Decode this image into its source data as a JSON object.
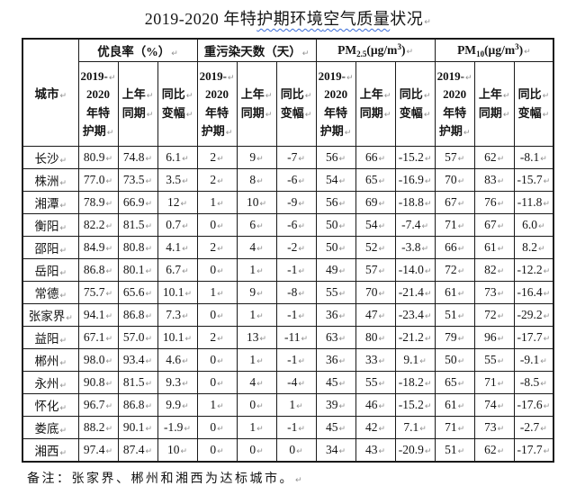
{
  "page": {
    "title_parts": {
      "p1": "2019-2020 年特",
      "p2": "护期环境",
      "p3": "空气质量",
      "p4": "状况"
    },
    "mark": "↵",
    "footnote": "备注：张家界、郴州和湘西为达标城市。"
  },
  "colors": {
    "border": "#1a1a1a",
    "text": "#141414",
    "paragraph_mark": "#8f8f8f",
    "spellcheck_squiggle": "#3a6cd8"
  },
  "table": {
    "city_header": "城市",
    "groups": [
      {
        "label": "优良率（%）"
      },
      {
        "label": "重污染天数（天）"
      },
      {
        "base": "PM",
        "sub": "2.5",
        "unit_pre": "(µg/m",
        "sup": "3",
        "unit_post": ")"
      },
      {
        "base": "PM",
        "sub": "10",
        "unit_pre": "(µg/m",
        "sup": "3",
        "unit_post": ")"
      }
    ],
    "sub_columns": [
      {
        "lines": [
          {
            "t": "2019-",
            "m": true
          },
          {
            "t": "2020",
            "m": false
          },
          {
            "t": "年特",
            "m": false
          },
          {
            "t": "护期",
            "m": true
          }
        ]
      },
      {
        "lines": [
          {
            "t": "上年",
            "m": true
          },
          {
            "t": "同期",
            "m": true
          }
        ]
      },
      {
        "lines": [
          {
            "t": "同比",
            "m": true
          },
          {
            "t": "变幅",
            "m": true
          }
        ]
      }
    ],
    "rows": [
      {
        "city": "长沙",
        "values": [
          "80.9",
          "74.8",
          "6.1",
          "2",
          "9",
          "-7",
          "56",
          "66",
          "-15.2",
          "57",
          "62",
          "-8.1"
        ]
      },
      {
        "city": "株洲",
        "values": [
          "77.0",
          "73.5",
          "3.5",
          "2",
          "8",
          "-6",
          "54",
          "65",
          "-16.9",
          "70",
          "83",
          "-15.7"
        ]
      },
      {
        "city": "湘潭",
        "values": [
          "78.9",
          "66.9",
          "12",
          "1",
          "10",
          "-9",
          "56",
          "69",
          "-18.8",
          "67",
          "76",
          "-11.8"
        ]
      },
      {
        "city": "衡阳",
        "values": [
          "82.2",
          "81.5",
          "0.7",
          "0",
          "6",
          "-6",
          "50",
          "54",
          "-7.4",
          "71",
          "67",
          "6.0"
        ]
      },
      {
        "city": "邵阳",
        "values": [
          "84.9",
          "80.8",
          "4.1",
          "2",
          "4",
          "-2",
          "50",
          "52",
          "-3.8",
          "66",
          "61",
          "8.2"
        ]
      },
      {
        "city": "岳阳",
        "values": [
          "86.8",
          "80.1",
          "6.7",
          "0",
          "1",
          "-1",
          "49",
          "57",
          "-14.0",
          "72",
          "82",
          "-12.2"
        ]
      },
      {
        "city": "常德",
        "values": [
          "75.7",
          "65.6",
          "10.1",
          "1",
          "9",
          "-8",
          "55",
          "70",
          "-21.4",
          "61",
          "73",
          "-16.4"
        ]
      },
      {
        "city": "张家界",
        "values": [
          "94.1",
          "86.8",
          "7.3",
          "0",
          "1",
          "-1",
          "36",
          "47",
          "-23.4",
          "51",
          "72",
          "-29.2"
        ]
      },
      {
        "city": "益阳",
        "values": [
          "67.1",
          "57.0",
          "10.1",
          "2",
          "13",
          "-11",
          "63",
          "80",
          "-21.2",
          "79",
          "96",
          "-17.7"
        ]
      },
      {
        "city": "郴州",
        "values": [
          "98.0",
          "93.4",
          "4.6",
          "0",
          "1",
          "-1",
          "36",
          "33",
          "9.1",
          "50",
          "55",
          "-9.1"
        ]
      },
      {
        "city": "永州",
        "values": [
          "90.8",
          "81.5",
          "9.3",
          "0",
          "4",
          "-4",
          "45",
          "55",
          "-18.2",
          "65",
          "71",
          "-8.5"
        ]
      },
      {
        "city": "怀化",
        "values": [
          "96.7",
          "86.8",
          "9.9",
          "1",
          "0",
          "1",
          "39",
          "46",
          "-15.2",
          "61",
          "74",
          "-17.6"
        ]
      },
      {
        "city": "娄底",
        "values": [
          "88.2",
          "90.1",
          "-1.9",
          "0",
          "1",
          "-1",
          "45",
          "42",
          "7.1",
          "71",
          "73",
          "-2.7"
        ]
      },
      {
        "city": "湘西",
        "values": [
          "97.4",
          "87.4",
          "10",
          "0",
          "0",
          "0",
          "34",
          "43",
          "-20.9",
          "51",
          "62",
          "-17.7"
        ]
      }
    ]
  }
}
